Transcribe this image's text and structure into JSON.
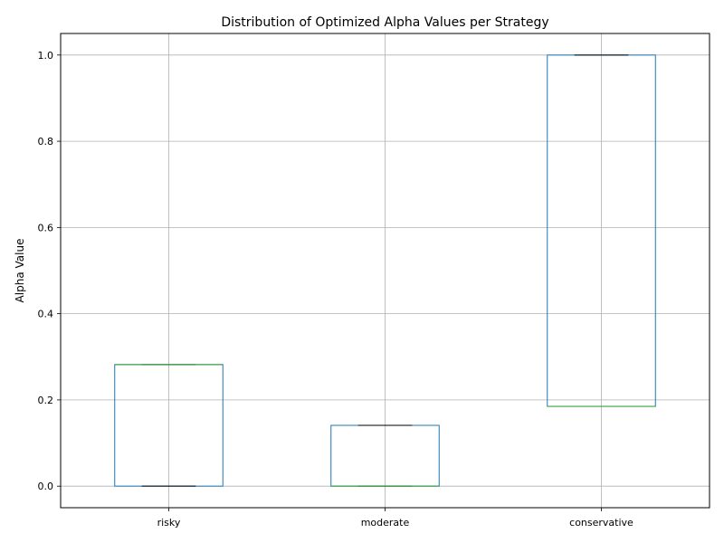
{
  "chart_data": {
    "type": "box",
    "title": "Distribution of Optimized Alpha Values per Strategy",
    "xlabel": "",
    "ylabel": "Alpha Value",
    "ylim": [
      -0.05,
      1.05
    ],
    "yticks": [
      0.0,
      0.2,
      0.4,
      0.6,
      0.8,
      1.0
    ],
    "ytick_labels": [
      "0.0",
      "0.2",
      "0.4",
      "0.6",
      "0.8",
      "1.0"
    ],
    "grid": true,
    "categories": [
      "risky",
      "moderate",
      "conservative"
    ],
    "boxes": [
      {
        "category": "risky",
        "min": 0.0,
        "q1": 0.0,
        "median": 0.282,
        "q3": 0.282,
        "max": 0.282
      },
      {
        "category": "moderate",
        "min": 0.0,
        "q1": 0.0,
        "median": 0.0,
        "q3": 0.141,
        "max": 0.141
      },
      {
        "category": "conservative",
        "min": 0.185,
        "q1": 0.185,
        "median": 0.185,
        "q3": 1.0,
        "max": 1.0
      }
    ],
    "colors": {
      "box": "#1f77b4",
      "median": "#2ca02c",
      "whisker_cap": "#000000",
      "grid": "#b0b0b0"
    }
  }
}
